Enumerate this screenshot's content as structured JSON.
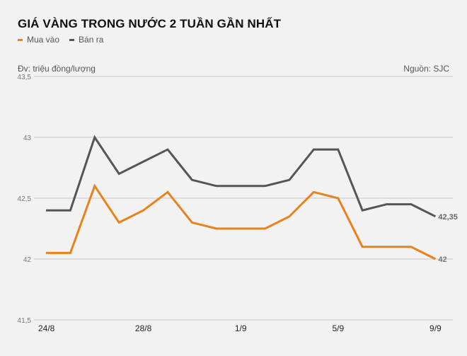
{
  "header": {
    "title": "GIÁ VÀNG TRONG NƯỚC 2 TUẦN GẦN NHẤT",
    "unit": "Đv: triệu đồng/lượng",
    "source": "Nguồn: SJC"
  },
  "legend": [
    {
      "label": "Mua vào",
      "color": "#e8821a"
    },
    {
      "label": "Bán ra",
      "color": "#555555"
    }
  ],
  "chart_data": {
    "type": "line",
    "title": "GIÁ VÀNG TRONG NƯỚC 2 TUẦN GẦN NHẤT",
    "xlabel": "",
    "ylabel": "Đv: triệu đồng/lượng",
    "ylim": [
      41.5,
      43.5
    ],
    "y_ticks": [
      "41,5",
      "42",
      "42,5",
      "43",
      "43,5"
    ],
    "x_tick_labels": [
      "24/8",
      "28/8",
      "1/9",
      "5/9",
      "9/9"
    ],
    "x": [
      "24/8",
      "25/8",
      "26/8",
      "27/8",
      "28/8",
      "29/8",
      "30/8",
      "31/8",
      "1/9",
      "2/9",
      "3/9",
      "4/9",
      "5/9",
      "6/9",
      "7/9",
      "8/9",
      "9/9"
    ],
    "grid": true,
    "legend_position": "top-left",
    "series": [
      {
        "name": "Mua vào",
        "color": "#e8821a",
        "values": [
          42.05,
          42.05,
          42.6,
          42.3,
          42.4,
          42.55,
          42.3,
          42.25,
          42.25,
          42.25,
          42.35,
          42.55,
          42.5,
          42.1,
          42.1,
          42.1,
          42.0
        ],
        "end_label": "42"
      },
      {
        "name": "Bán ra",
        "color": "#555555",
        "values": [
          42.4,
          42.4,
          43.0,
          42.7,
          42.8,
          42.9,
          42.65,
          42.6,
          42.6,
          42.6,
          42.65,
          42.9,
          42.9,
          42.4,
          42.45,
          42.45,
          42.35
        ],
        "end_label": "42,35"
      }
    ]
  }
}
